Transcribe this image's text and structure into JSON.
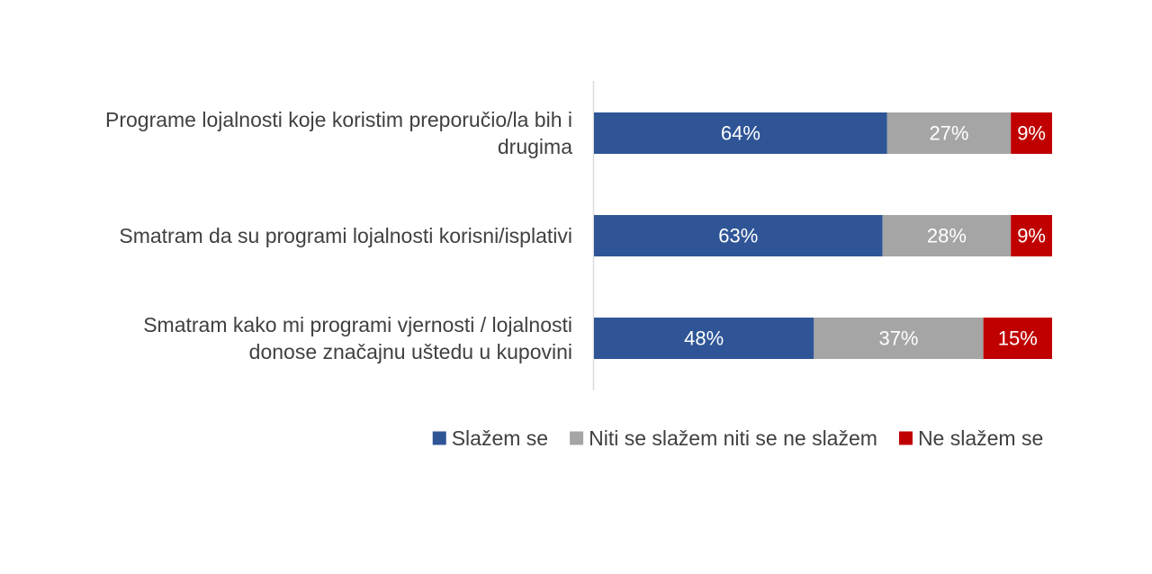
{
  "chart_data": {
    "type": "bar",
    "orientation": "horizontal",
    "stacked": "percent",
    "categories": [
      [
        "Programe lojalnosti koje koristim preporučio/la bih i",
        "drugima"
      ],
      [
        "Smatram da su programi lojalnosti korisni/isplativi"
      ],
      [
        "Smatram kako mi programi vjernosti / lojalnosti",
        "donose značajnu uštedu u kupovini"
      ]
    ],
    "series": [
      {
        "name": "Slažem se",
        "color": "#2f5597",
        "values": [
          64,
          63,
          48
        ],
        "labels": [
          "64%",
          "63%",
          "48%"
        ]
      },
      {
        "name": "Niti se slažem niti se ne slažem",
        "color": "#a5a5a5",
        "values": [
          27,
          28,
          37
        ],
        "labels": [
          "27%",
          "28%",
          "37%"
        ]
      },
      {
        "name": "Ne slažem se",
        "color": "#c00000",
        "values": [
          9,
          9,
          15
        ],
        "labels": [
          "9%",
          "9%",
          "15%"
        ]
      }
    ],
    "xlim": [
      0,
      100
    ],
    "grid": false,
    "legend_position": "bottom"
  }
}
